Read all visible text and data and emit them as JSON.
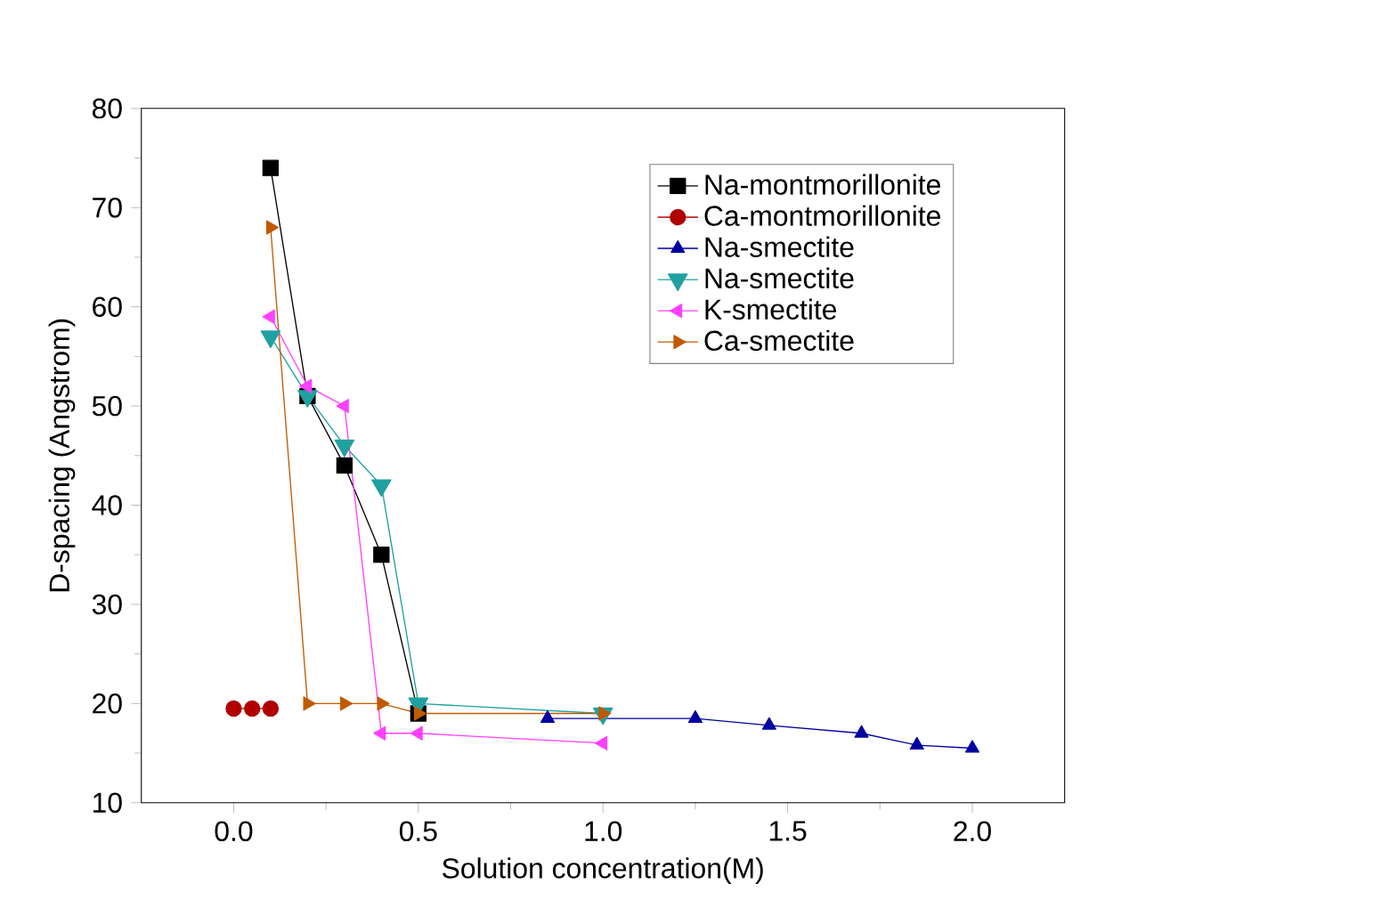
{
  "chart_data": {
    "type": "line",
    "xlabel": "Solution concentration(M)",
    "ylabel": "D-spacing (Angstrom)",
    "xlim": [
      -0.25,
      2.25
    ],
    "ylim": [
      10,
      80
    ],
    "xticks": [
      {
        "value": 0,
        "label": "0.0"
      },
      0.5,
      {
        "value": 1,
        "label": "1.0"
      },
      1.5,
      {
        "value": 2,
        "label": "2.0"
      }
    ],
    "yticks": [
      10,
      20,
      30,
      40,
      50,
      60,
      70,
      80
    ],
    "legend": "top right",
    "grid": false,
    "series": [
      {
        "name": "Na-montmorillonite",
        "color": "#000000",
        "marker": "square",
        "x": [
          0.1,
          0.2,
          0.3,
          0.4,
          0.5
        ],
        "values": [
          74,
          51,
          44,
          35,
          19
        ]
      },
      {
        "name": "Ca-montmorillonite",
        "color": "#b00000",
        "marker": "circle",
        "x": [
          0,
          0.05,
          0.1
        ],
        "values": [
          19.5,
          19.5,
          19.5
        ]
      },
      {
        "name": "Na-smectite",
        "color": "#0000a0",
        "marker": "triangle",
        "x": [
          0.85,
          1.25,
          1.45,
          1.7,
          1.85,
          2.0
        ],
        "values": [
          18.5,
          18.5,
          17.8,
          17,
          15.8,
          15.5
        ]
      },
      {
        "name": "Na-smectite",
        "color": "#20a0a0",
        "marker": "triangle-down",
        "x": [
          0.1,
          0.2,
          0.3,
          0.4,
          0.5,
          1.0
        ],
        "values": [
          57,
          51,
          46,
          42,
          20,
          19
        ]
      },
      {
        "name": "K-smectite",
        "color": "#ff40ff",
        "marker": "triangle-left",
        "x": [
          0.1,
          0.2,
          0.3,
          0.4,
          0.5,
          1.0
        ],
        "values": [
          59,
          52,
          50,
          17,
          17,
          16
        ]
      },
      {
        "name": "Ca-smectite",
        "color": "#c05a00",
        "marker": "triangle-right",
        "x": [
          0.1,
          0.2,
          0.3,
          0.4,
          0.5,
          1.0
        ],
        "values": [
          68,
          20,
          20,
          20,
          19,
          19
        ]
      }
    ]
  }
}
